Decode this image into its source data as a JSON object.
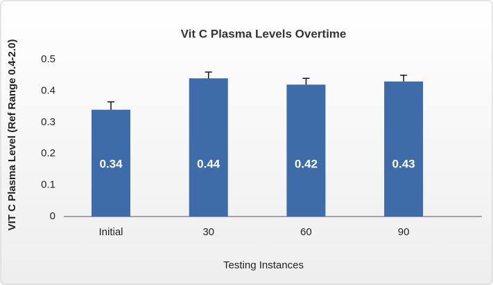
{
  "chart_data": {
    "type": "bar",
    "title": "Vit C Plasma Levels Overtime",
    "x_label": "Testing Instances",
    "y_label": "VIT C Plasma Level (Ref Range 0.4-2.0)",
    "categories": [
      "Initial",
      "30",
      "60",
      "90"
    ],
    "values": [
      0.34,
      0.44,
      0.42,
      0.43
    ],
    "errors": [
      0.025,
      0.02,
      0.02,
      0.02
    ],
    "color": "#3e6ca8",
    "ylim": [
      0,
      0.5
    ],
    "yticks": [
      0,
      0.1,
      0.2,
      0.3,
      0.4,
      0.5
    ],
    "grid": false
  }
}
